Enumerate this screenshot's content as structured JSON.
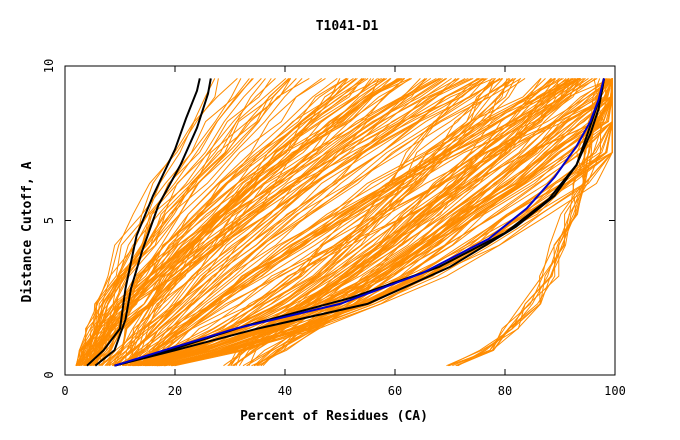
{
  "chart_data": {
    "type": "line",
    "title": "T1041-D1",
    "xlabel": "Percent of Residues (CA)",
    "ylabel": "Distance Cutoff, A",
    "xlim": [
      0,
      100
    ],
    "ylim": [
      0,
      10
    ],
    "x_ticks": [
      "0",
      "20",
      "40",
      "60",
      "80",
      "100"
    ],
    "y_ticks": [
      "0",
      "5",
      "10"
    ],
    "grid": false,
    "legend": "none",
    "colors": {
      "models": "#ff8c00",
      "highlight_black": "#000000",
      "highlight_blue": "#0000cc"
    },
    "series": [
      {
        "color": "#000000",
        "points": [
          [
            4,
            0.3
          ],
          [
            7,
            0.8
          ],
          [
            10,
            1.5
          ],
          [
            11,
            2.8
          ],
          [
            13,
            4.5
          ],
          [
            16,
            5.8
          ],
          [
            20,
            7.3
          ],
          [
            22,
            8.3
          ],
          [
            24,
            9.2
          ],
          [
            24.5,
            9.6
          ]
        ]
      },
      {
        "color": "#000000",
        "points": [
          [
            5.5,
            0.3
          ],
          [
            9,
            0.8
          ],
          [
            11,
            1.8
          ],
          [
            12,
            2.8
          ],
          [
            14,
            4.0
          ],
          [
            17,
            5.5
          ],
          [
            21,
            6.8
          ],
          [
            24,
            8.0
          ],
          [
            26,
            9.1
          ],
          [
            26.5,
            9.6
          ]
        ]
      },
      {
        "color": "#000000",
        "points": [
          [
            9,
            0.3
          ],
          [
            20,
            0.8
          ],
          [
            35,
            1.5
          ],
          [
            55,
            2.3
          ],
          [
            70,
            3.5
          ],
          [
            82,
            4.8
          ],
          [
            89,
            5.8
          ],
          [
            93,
            6.8
          ],
          [
            95,
            7.8
          ],
          [
            96.5,
            8.6
          ],
          [
            97.5,
            9.1
          ],
          [
            98,
            9.6
          ]
        ]
      },
      {
        "color": "#000000",
        "points": [
          [
            9,
            0.3
          ],
          [
            19,
            0.8
          ],
          [
            33,
            1.6
          ],
          [
            52,
            2.5
          ],
          [
            68,
            3.5
          ],
          [
            80,
            4.6
          ],
          [
            88,
            5.7
          ],
          [
            93,
            6.8
          ],
          [
            95.5,
            7.8
          ],
          [
            97,
            8.6
          ],
          [
            97.5,
            9.1
          ],
          [
            98,
            9.6
          ]
        ]
      },
      {
        "color": "#0000cc",
        "points": [
          [
            9,
            0.3
          ],
          [
            18,
            0.8
          ],
          [
            31,
            1.5
          ],
          [
            50,
            2.3
          ],
          [
            65,
            3.3
          ],
          [
            77,
            4.4
          ],
          [
            84,
            5.4
          ],
          [
            89,
            6.4
          ],
          [
            93,
            7.4
          ],
          [
            95.5,
            8.2
          ],
          [
            97,
            8.9
          ],
          [
            98,
            9.6
          ]
        ]
      }
    ]
  }
}
